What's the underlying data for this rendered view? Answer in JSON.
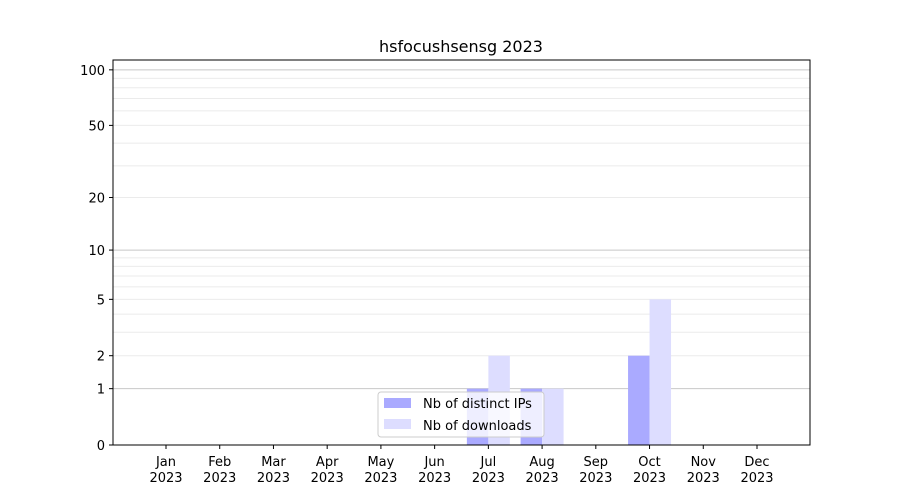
{
  "chart_data": {
    "type": "bar",
    "title": "hsfocushsensg 2023",
    "xlabel": "",
    "ylabel": "",
    "yscale": "log(1+y)",
    "ylim": [
      0,
      113
    ],
    "yticks": [
      0,
      1,
      2,
      5,
      10,
      20,
      50,
      100
    ],
    "categories": [
      "Jan\n2023",
      "Feb\n2023",
      "Mar\n2023",
      "Apr\n2023",
      "May\n2023",
      "Jun\n2023",
      "Jul\n2023",
      "Aug\n2023",
      "Sep\n2023",
      "Oct\n2023",
      "Nov\n2023",
      "Dec\n2023"
    ],
    "series": [
      {
        "name": "Nb of distinct IPs",
        "color": "#aaaaff",
        "values": [
          0,
          0,
          0,
          0,
          0,
          0,
          1,
          1,
          0,
          2,
          0,
          0
        ]
      },
      {
        "name": "Nb of downloads",
        "color": "#ddddff",
        "values": [
          0,
          0,
          0,
          0,
          0,
          0,
          2,
          1,
          0,
          5,
          0,
          0
        ]
      }
    ],
    "grid": true,
    "legend_position": "lower-center"
  }
}
